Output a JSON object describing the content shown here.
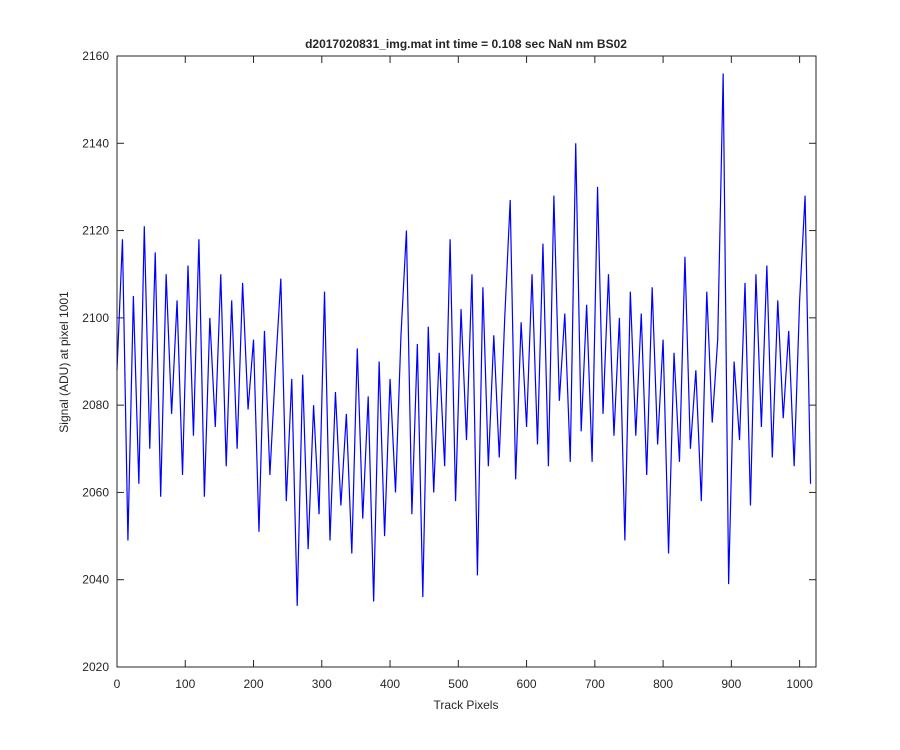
{
  "chart_data": {
    "type": "line",
    "title": "d2017020831_img.mat int time = 0.108 sec  NaN nm BS02",
    "x_label": "Track Pixels",
    "y_label": "Signal (ADU) at pixel 1001",
    "x": [
      0,
      8,
      16,
      24,
      32,
      40,
      48,
      56,
      64,
      72,
      80,
      88,
      96,
      104,
      112,
      120,
      128,
      136,
      144,
      152,
      160,
      168,
      176,
      184,
      192,
      200,
      208,
      216,
      224,
      232,
      240,
      248,
      256,
      264,
      272,
      280,
      288,
      296,
      304,
      312,
      320,
      328,
      336,
      344,
      352,
      360,
      368,
      376,
      384,
      392,
      400,
      408,
      416,
      424,
      432,
      440,
      448,
      456,
      464,
      472,
      480,
      488,
      496,
      504,
      512,
      520,
      528,
      536,
      544,
      552,
      560,
      568,
      576,
      584,
      592,
      600,
      608,
      616,
      624,
      632,
      640,
      648,
      656,
      664,
      672,
      680,
      688,
      696,
      704,
      712,
      720,
      728,
      736,
      744,
      752,
      760,
      768,
      776,
      784,
      792,
      800,
      808,
      816,
      824,
      832,
      840,
      848,
      856,
      864,
      872,
      880,
      888,
      896,
      904,
      912,
      920,
      928,
      936,
      944,
      952,
      960,
      968,
      976,
      984,
      992,
      1000,
      1008,
      1016
    ],
    "series": [
      {
        "color": "#0000ff",
        "values": [
          2088,
          2118,
          2049,
          2105,
          2062,
          2121,
          2070,
          2115,
          2059,
          2110,
          2078,
          2104,
          2064,
          2112,
          2073,
          2118,
          2059,
          2100,
          2075,
          2110,
          2066,
          2104,
          2070,
          2108,
          2079,
          2095,
          2051,
          2097,
          2064,
          2088,
          2109,
          2058,
          2086,
          2034,
          2087,
          2047,
          2080,
          2055,
          2106,
          2049,
          2083,
          2057,
          2078,
          2046,
          2093,
          2054,
          2082,
          2035,
          2090,
          2050,
          2086,
          2060,
          2096,
          2120,
          2055,
          2094,
          2036,
          2098,
          2060,
          2092,
          2066,
          2118,
          2058,
          2102,
          2072,
          2110,
          2041,
          2107,
          2066,
          2096,
          2068,
          2100,
          2127,
          2063,
          2099,
          2075,
          2110,
          2071,
          2117,
          2066,
          2128,
          2081,
          2101,
          2067,
          2140,
          2074,
          2103,
          2067,
          2130,
          2078,
          2110,
          2073,
          2100,
          2049,
          2106,
          2073,
          2101,
          2064,
          2107,
          2071,
          2095,
          2046,
          2092,
          2067,
          2114,
          2070,
          2088,
          2058,
          2106,
          2076,
          2095,
          2156,
          2039,
          2090,
          2072,
          2108,
          2057,
          2110,
          2075,
          2112,
          2068,
          2104,
          2077,
          2097,
          2066,
          2104,
          2128,
          2062
        ]
      }
    ],
    "xlim": [
      0,
      1024
    ],
    "xticks": [
      0,
      100,
      200,
      300,
      400,
      500,
      600,
      700,
      800,
      900,
      1000
    ],
    "ylim": [
      2020,
      2160
    ],
    "yticks": [
      2020,
      2040,
      2060,
      2080,
      2100,
      2120,
      2140,
      2160
    ]
  }
}
